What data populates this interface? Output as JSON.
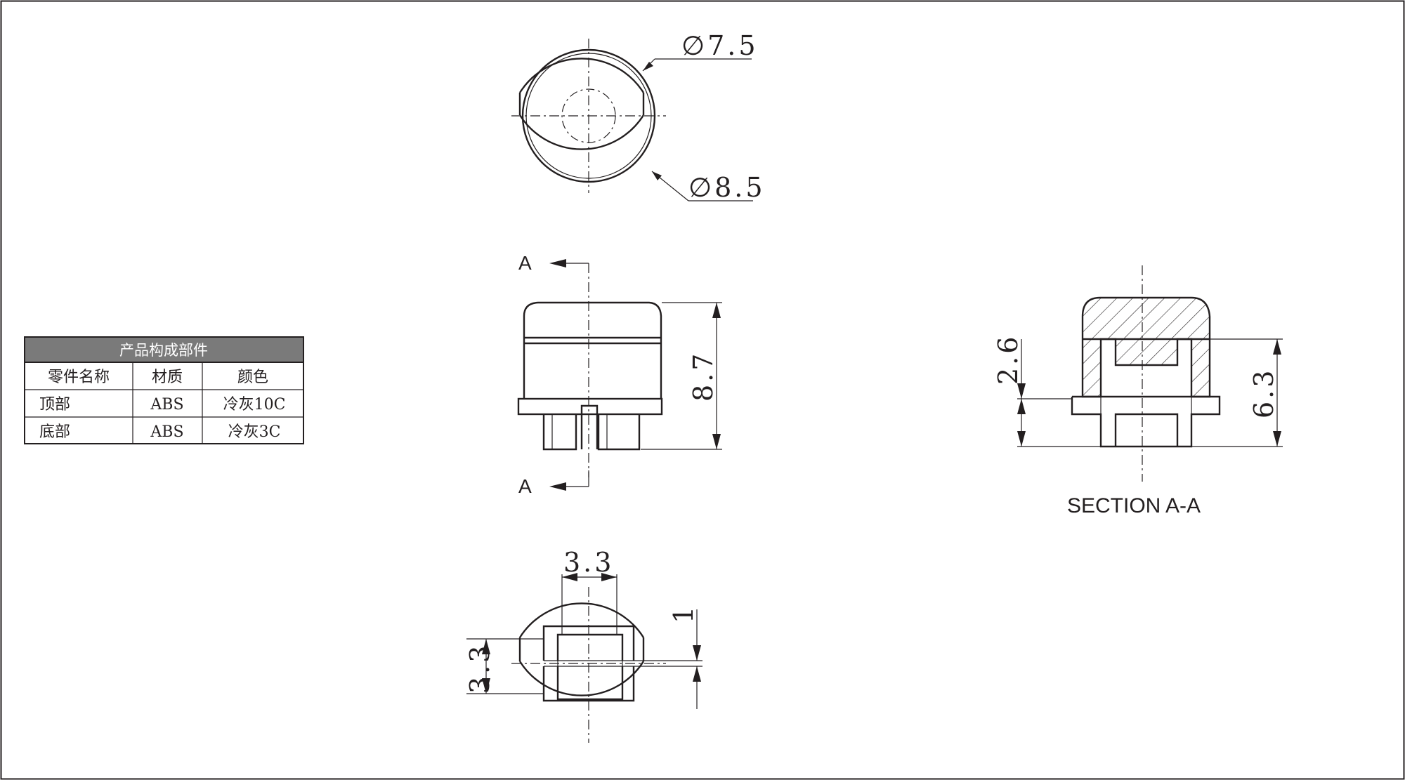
{
  "top_view": {
    "dim_outer_inner": "∅7.5",
    "dim_outer": "∅8.5"
  },
  "front_view": {
    "section_mark_top": "A",
    "section_mark_bottom": "A",
    "dim_height": "8.7"
  },
  "section_view": {
    "dim_left": "2.6",
    "dim_right": "6.3",
    "caption": "SECTION A-A"
  },
  "bottom_view": {
    "dim_width": "3.3",
    "dim_height": "3.3",
    "dim_gap": "1"
  },
  "parts_table": {
    "title": "产品构成部件",
    "headers": [
      "零件名称",
      "材质",
      "颜色"
    ],
    "rows": [
      [
        "顶部",
        "ABS",
        "冷灰10C"
      ],
      [
        "底部",
        "ABS",
        "冷灰3C"
      ]
    ],
    "header_color": "#7a7a7a"
  }
}
